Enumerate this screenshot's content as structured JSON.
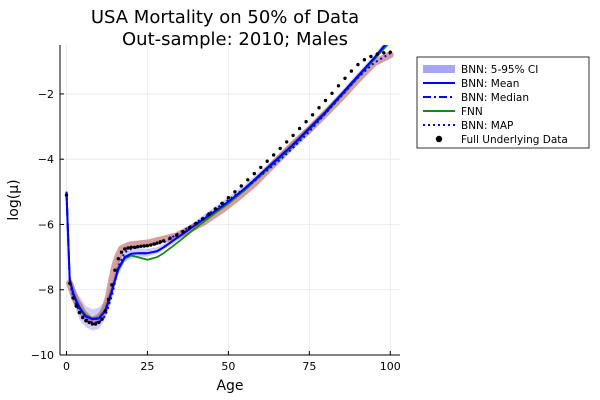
{
  "chart_data": {
    "type": "line",
    "title": "USA Mortality on 50% of Data",
    "subtitle": "Out-sample: 2010; Males",
    "xlabel": "Age",
    "ylabel": "log(μ)",
    "xlim": [
      -2,
      103
    ],
    "ylim": [
      -10,
      -0.5
    ],
    "xticks": [
      0,
      25,
      50,
      75,
      100
    ],
    "yticks": [
      -10,
      -8,
      -6,
      -4,
      -2
    ],
    "xtick_labels": [
      "0",
      "25",
      "50",
      "75",
      "100"
    ],
    "ytick_labels": [
      "−10",
      "−8",
      "−6",
      "−4",
      "−2"
    ],
    "grid": true,
    "legend_position": "outside top-right",
    "colors": {
      "ci_band": "#a6a6f2",
      "mean": "#0000ff",
      "median": "#0000ff",
      "fnn": "#138c13",
      "map": "#0000ff",
      "data": "#000000",
      "observed": "#a52a2a"
    },
    "legend": [
      {
        "label": "BNN: 5-95% CI",
        "style": "band"
      },
      {
        "label": "BNN: Mean",
        "style": "solid"
      },
      {
        "label": "BNN: Median",
        "style": "dashdot"
      },
      {
        "label": "FNN",
        "style": "solid-green"
      },
      {
        "label": "BNN: MAP",
        "style": "dotted"
      },
      {
        "label": "Full Underlying Data",
        "style": "marker"
      }
    ],
    "x": [
      0,
      1,
      2,
      3,
      4,
      5,
      6,
      8,
      10,
      12,
      14,
      16,
      18,
      20,
      22,
      25,
      28,
      30,
      35,
      40,
      45,
      50,
      55,
      60,
      65,
      70,
      75,
      80,
      85,
      90,
      95,
      100
    ],
    "series": [
      {
        "name": "BNN: Mean",
        "values": [
          -5.0,
          -7.7,
          -8.1,
          -8.35,
          -8.55,
          -8.7,
          -8.82,
          -8.9,
          -8.88,
          -8.65,
          -8.05,
          -7.35,
          -7.0,
          -6.9,
          -6.88,
          -6.88,
          -6.82,
          -6.7,
          -6.35,
          -6.0,
          -5.65,
          -5.3,
          -4.9,
          -4.45,
          -4.0,
          -3.55,
          -3.05,
          -2.55,
          -2.0,
          -1.45,
          -0.9,
          -0.3
        ]
      },
      {
        "name": "BNN: Median",
        "values": [
          -5.0,
          -7.7,
          -8.1,
          -8.35,
          -8.55,
          -8.7,
          -8.82,
          -8.9,
          -8.88,
          -8.65,
          -8.05,
          -7.35,
          -7.0,
          -6.9,
          -6.88,
          -6.88,
          -6.82,
          -6.7,
          -6.35,
          -6.0,
          -5.65,
          -5.3,
          -4.9,
          -4.45,
          -4.0,
          -3.55,
          -3.05,
          -2.55,
          -2.0,
          -1.45,
          -0.9,
          -0.3
        ]
      },
      {
        "name": "FNN",
        "values": [
          -5.0,
          -7.65,
          -8.05,
          -8.3,
          -8.5,
          -8.66,
          -8.78,
          -8.88,
          -8.85,
          -8.6,
          -8.0,
          -7.4,
          -7.05,
          -6.95,
          -7.0,
          -7.08,
          -7.0,
          -6.88,
          -6.5,
          -6.1,
          -5.72,
          -5.35,
          -4.95,
          -4.5,
          -4.05,
          -3.6,
          -3.1,
          -2.6,
          -2.05,
          -1.5,
          -0.95,
          -0.4
        ]
      },
      {
        "name": "BNN: MAP",
        "values": [
          -5.05,
          -7.75,
          -8.2,
          -8.45,
          -8.65,
          -8.8,
          -8.9,
          -9.0,
          -9.0,
          -8.8,
          -8.2,
          -7.3,
          -6.85,
          -6.75,
          -6.7,
          -6.65,
          -6.6,
          -6.55,
          -6.25,
          -5.95,
          -5.6,
          -5.25,
          -4.9,
          -4.5,
          -4.1,
          -3.65,
          -3.15,
          -2.6,
          -2.05,
          -1.5,
          -1.05,
          -0.75
        ]
      }
    ],
    "ci_band": {
      "lower": [
        -5.1,
        -7.9,
        -8.35,
        -8.65,
        -8.9,
        -9.05,
        -9.15,
        -9.25,
        -9.2,
        -8.9,
        -8.25,
        -7.55,
        -7.15,
        -7.05,
        -7.0,
        -6.98,
        -6.9,
        -6.78,
        -6.45,
        -6.1,
        -5.75,
        -5.42,
        -5.0,
        -4.55,
        -4.1,
        -3.65,
        -3.15,
        -2.65,
        -2.1,
        -1.55,
        -1.0,
        -0.4
      ],
      "upper": [
        -4.9,
        -7.5,
        -7.85,
        -8.05,
        -8.2,
        -8.35,
        -8.5,
        -8.6,
        -8.55,
        -8.35,
        -7.8,
        -7.1,
        -6.8,
        -6.72,
        -6.72,
        -6.75,
        -6.7,
        -6.6,
        -6.25,
        -5.88,
        -5.52,
        -5.15,
        -4.78,
        -4.35,
        -3.9,
        -3.45,
        -2.95,
        -2.45,
        -1.9,
        -1.35,
        -0.8,
        -0.2
      ]
    },
    "observed_data": {
      "x": [
        1,
        2,
        3,
        4,
        5,
        6,
        7,
        8,
        9,
        10,
        11,
        12,
        13,
        14,
        15,
        16,
        17,
        18,
        19,
        20,
        22,
        24,
        26,
        28,
        30,
        32,
        34,
        36,
        38,
        40,
        42,
        45,
        48,
        52,
        55,
        58,
        62,
        65,
        70,
        75,
        80,
        85,
        90,
        95,
        100
      ],
      "y": [
        -7.8,
        -8.1,
        -8.35,
        -8.5,
        -8.7,
        -8.8,
        -8.9,
        -8.95,
        -8.9,
        -8.85,
        -8.75,
        -8.55,
        -8.2,
        -7.7,
        -7.25,
        -6.95,
        -6.75,
        -6.7,
        -6.65,
        -6.62,
        -6.6,
        -6.58,
        -6.55,
        -6.5,
        -6.45,
        -6.4,
        -6.35,
        -6.25,
        -6.15,
        -6.05,
        -5.95,
        -5.75,
        -5.55,
        -5.25,
        -5.0,
        -4.75,
        -4.35,
        -4.05,
        -3.55,
        -3.1,
        -2.6,
        -2.1,
        -1.55,
        -1.05,
        -0.8
      ]
    },
    "full_underlying_data": {
      "x": [
        0,
        1,
        2,
        3,
        4,
        5,
        6,
        7,
        8,
        9,
        10,
        11,
        12,
        13,
        14,
        15,
        16,
        17,
        18,
        19,
        20,
        21,
        22,
        23,
        24,
        25,
        26,
        27,
        28,
        29,
        30,
        32,
        34,
        36,
        38,
        40,
        42,
        44,
        46,
        48,
        50,
        52,
        54,
        56,
        58,
        60,
        62,
        64,
        66,
        68,
        70,
        72,
        74,
        76,
        78,
        80,
        82,
        84,
        86,
        88,
        90,
        92,
        94,
        96,
        98,
        100
      ],
      "y": [
        -5.1,
        -7.8,
        -8.25,
        -8.5,
        -8.7,
        -8.85,
        -8.95,
        -9.0,
        -9.05,
        -9.05,
        -9.0,
        -8.9,
        -8.65,
        -8.3,
        -7.85,
        -7.4,
        -7.05,
        -6.85,
        -6.75,
        -6.72,
        -6.7,
        -6.7,
        -6.68,
        -6.67,
        -6.66,
        -6.65,
        -6.63,
        -6.6,
        -6.57,
        -6.53,
        -6.5,
        -6.42,
        -6.33,
        -6.22,
        -6.1,
        -5.97,
        -5.83,
        -5.68,
        -5.52,
        -5.35,
        -5.18,
        -5.0,
        -4.82,
        -4.63,
        -4.44,
        -4.25,
        -4.06,
        -3.87,
        -3.67,
        -3.47,
        -3.27,
        -3.06,
        -2.85,
        -2.64,
        -2.42,
        -2.2,
        -1.98,
        -1.75,
        -1.52,
        -1.3,
        -1.1,
        -0.95,
        -0.85,
        -0.78,
        -0.74,
        -0.72
      ]
    }
  }
}
